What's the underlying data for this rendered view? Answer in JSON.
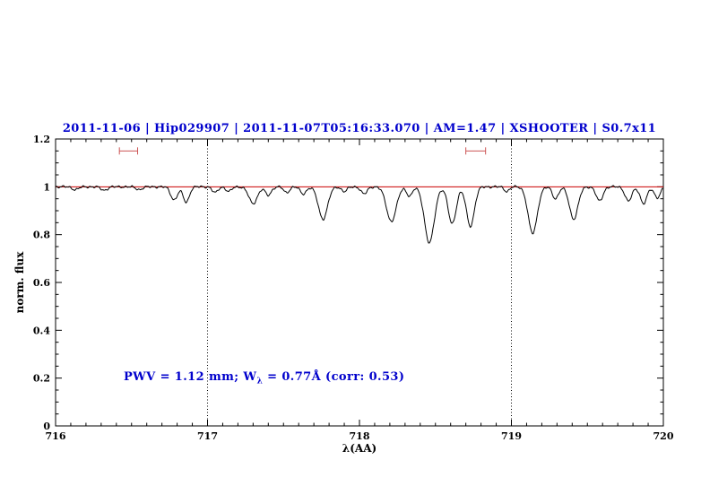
{
  "chart_data": {
    "type": "line",
    "title": "2011-11-06 | Hip029907 | 2011-11-07T05:16:33.070 | AM=1.47 | XSHOOTER | S0.7x11",
    "title_color": "#0000cc",
    "xlabel": "λ(AA)",
    "ylabel": "norm. flux",
    "xlim": [
      716,
      720
    ],
    "ylim": [
      0,
      1.2
    ],
    "x_tick_values": [
      716,
      717,
      718,
      719,
      720
    ],
    "x_tick_labels": [
      "716",
      "717",
      "718",
      "719",
      "720"
    ],
    "y_tick_values": [
      0,
      0.2,
      0.4,
      0.6,
      0.8,
      1,
      1.2
    ],
    "y_tick_labels": [
      "0",
      "0.2",
      "0.4",
      "0.6",
      "0.8",
      "1",
      "1.2"
    ],
    "x_minor_step": 0.1,
    "y_minor_step": 0.05,
    "grid": false,
    "dotted_vlines": [
      717,
      719
    ],
    "continuum_level": 1.0,
    "continuum_color": "#cc0000",
    "spectrum_color": "#000000",
    "marker_color": "#cc5555",
    "range_markers": [
      {
        "x_start": 716.42,
        "x_end": 716.54,
        "y": 1.15
      },
      {
        "x_start": 718.7,
        "x_end": 718.83,
        "y": 1.15
      }
    ],
    "annotation": {
      "pre": "PWV = 1.12 mm; W",
      "sub": "λ",
      "post": " = 0.77Å (corr: 0.53)",
      "color": "#0000cc"
    },
    "sample_step": 0.006,
    "noise_amplitude": 0.006,
    "absorption_lines": [
      {
        "center": 716.13,
        "depth": 0.012,
        "sigma": 0.02
      },
      {
        "center": 716.32,
        "depth": 0.015,
        "sigma": 0.02
      },
      {
        "center": 716.55,
        "depth": 0.012,
        "sigma": 0.02
      },
      {
        "center": 716.78,
        "depth": 0.055,
        "sigma": 0.022
      },
      {
        "center": 716.86,
        "depth": 0.065,
        "sigma": 0.02
      },
      {
        "center": 717.05,
        "depth": 0.025,
        "sigma": 0.018
      },
      {
        "center": 717.14,
        "depth": 0.02,
        "sigma": 0.018
      },
      {
        "center": 717.3,
        "depth": 0.07,
        "sigma": 0.028
      },
      {
        "center": 717.4,
        "depth": 0.035,
        "sigma": 0.02
      },
      {
        "center": 717.52,
        "depth": 0.025,
        "sigma": 0.018
      },
      {
        "center": 717.63,
        "depth": 0.03,
        "sigma": 0.02
      },
      {
        "center": 717.76,
        "depth": 0.135,
        "sigma": 0.03
      },
      {
        "center": 717.9,
        "depth": 0.02,
        "sigma": 0.018
      },
      {
        "center": 718.03,
        "depth": 0.03,
        "sigma": 0.02
      },
      {
        "center": 718.21,
        "depth": 0.145,
        "sigma": 0.032
      },
      {
        "center": 718.33,
        "depth": 0.04,
        "sigma": 0.018
      },
      {
        "center": 718.46,
        "depth": 0.235,
        "sigma": 0.032
      },
      {
        "center": 718.61,
        "depth": 0.155,
        "sigma": 0.026
      },
      {
        "center": 718.73,
        "depth": 0.165,
        "sigma": 0.026
      },
      {
        "center": 718.97,
        "depth": 0.02,
        "sigma": 0.016
      },
      {
        "center": 719.14,
        "depth": 0.195,
        "sigma": 0.03
      },
      {
        "center": 719.29,
        "depth": 0.05,
        "sigma": 0.02
      },
      {
        "center": 719.41,
        "depth": 0.135,
        "sigma": 0.028
      },
      {
        "center": 719.58,
        "depth": 0.06,
        "sigma": 0.022
      },
      {
        "center": 719.77,
        "depth": 0.06,
        "sigma": 0.022
      },
      {
        "center": 719.87,
        "depth": 0.07,
        "sigma": 0.022
      },
      {
        "center": 719.96,
        "depth": 0.045,
        "sigma": 0.02
      }
    ]
  }
}
